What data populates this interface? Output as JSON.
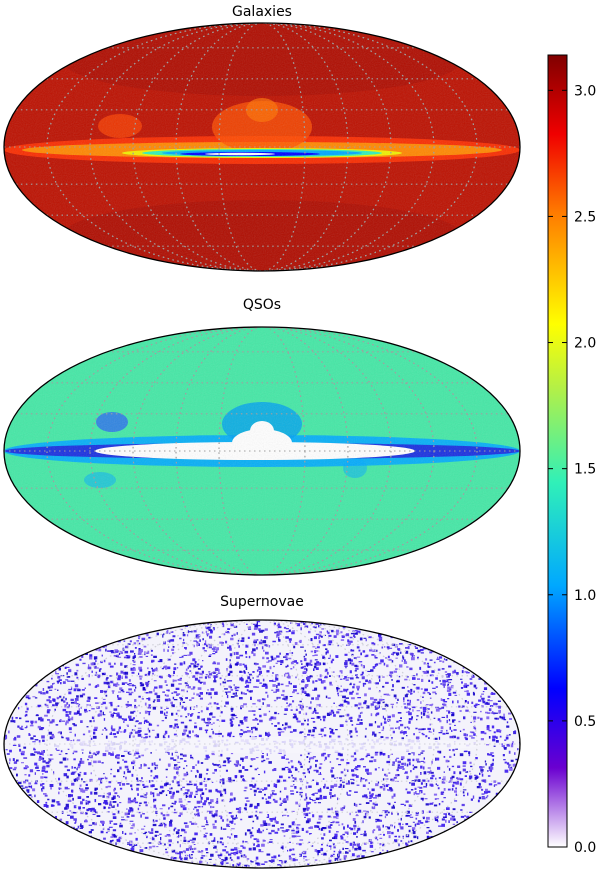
{
  "chart_data": {
    "type": "heatmap",
    "projection": "mollweide",
    "grid": true,
    "panels": [
      {
        "title": "Galaxies",
        "pattern": "galaxies"
      },
      {
        "title": "QSOs",
        "pattern": "qsos"
      },
      {
        "title": "Supernovae",
        "pattern": "supernovae"
      }
    ],
    "colorbar": {
      "orientation": "vertical",
      "range": [
        0.0,
        3.14
      ],
      "ticks": [
        0.0,
        0.5,
        1.0,
        1.5,
        2.0,
        2.5,
        3.0
      ],
      "tick_labels": [
        "0.0",
        "0.5",
        "1.0",
        "1.5",
        "2.0",
        "2.5",
        "3.0"
      ],
      "colormap_stops": [
        [
          0.0,
          "#ffffff"
        ],
        [
          0.1,
          "#6a00d0"
        ],
        [
          0.2,
          "#0000ff"
        ],
        [
          0.33,
          "#00a8ff"
        ],
        [
          0.46,
          "#30f0b8"
        ],
        [
          0.58,
          "#b4f046"
        ],
        [
          0.66,
          "#ffff00"
        ],
        [
          0.8,
          "#ff7c00"
        ],
        [
          0.9,
          "#f00000"
        ],
        [
          1.0,
          "#800000"
        ]
      ]
    }
  }
}
